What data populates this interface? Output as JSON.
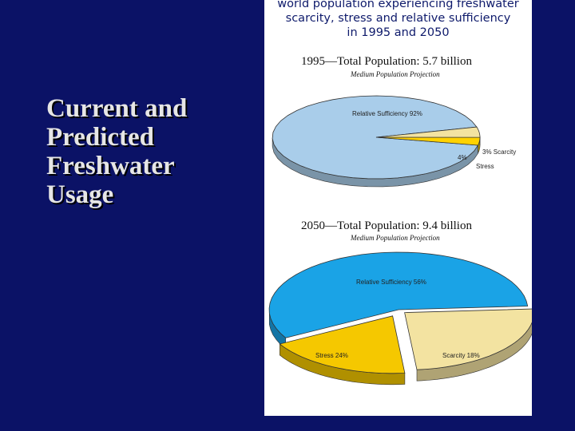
{
  "slide": {
    "title_lines": [
      "Current and",
      "Predicted",
      "Freshwater",
      "Usage"
    ]
  },
  "figure": {
    "title_lines": [
      "world population experiencing freshwater",
      "scarcity, stress and relative sufficiency",
      "in 1995 and 2050"
    ]
  },
  "chart_data": [
    {
      "type": "pie",
      "title": "1995—Total Population:  5.7 billion",
      "subtitle": "Medium Population Projection",
      "slices": [
        {
          "label": "Relative Sufficiency 92%",
          "value": 92,
          "color": "#a9cdea"
        },
        {
          "label": "3% Scarcity",
          "value": 3,
          "color": "#ffd200"
        },
        {
          "label": "4%",
          "value": 4,
          "color": "#f3e3a1"
        }
      ],
      "annotations": [
        "Stress"
      ]
    },
    {
      "type": "pie",
      "title": "2050—Total Population:  9.4 billion",
      "subtitle": "Medium Population Projection",
      "slices": [
        {
          "label": "Relative Sufficiency 56%",
          "value": 56,
          "color": "#1aa3e6"
        },
        {
          "label": "Scarcity 18%",
          "value": 18,
          "color": "#f5c800"
        },
        {
          "label": "Stress 24%",
          "value": 24,
          "color": "#f3e3a1"
        }
      ]
    }
  ]
}
